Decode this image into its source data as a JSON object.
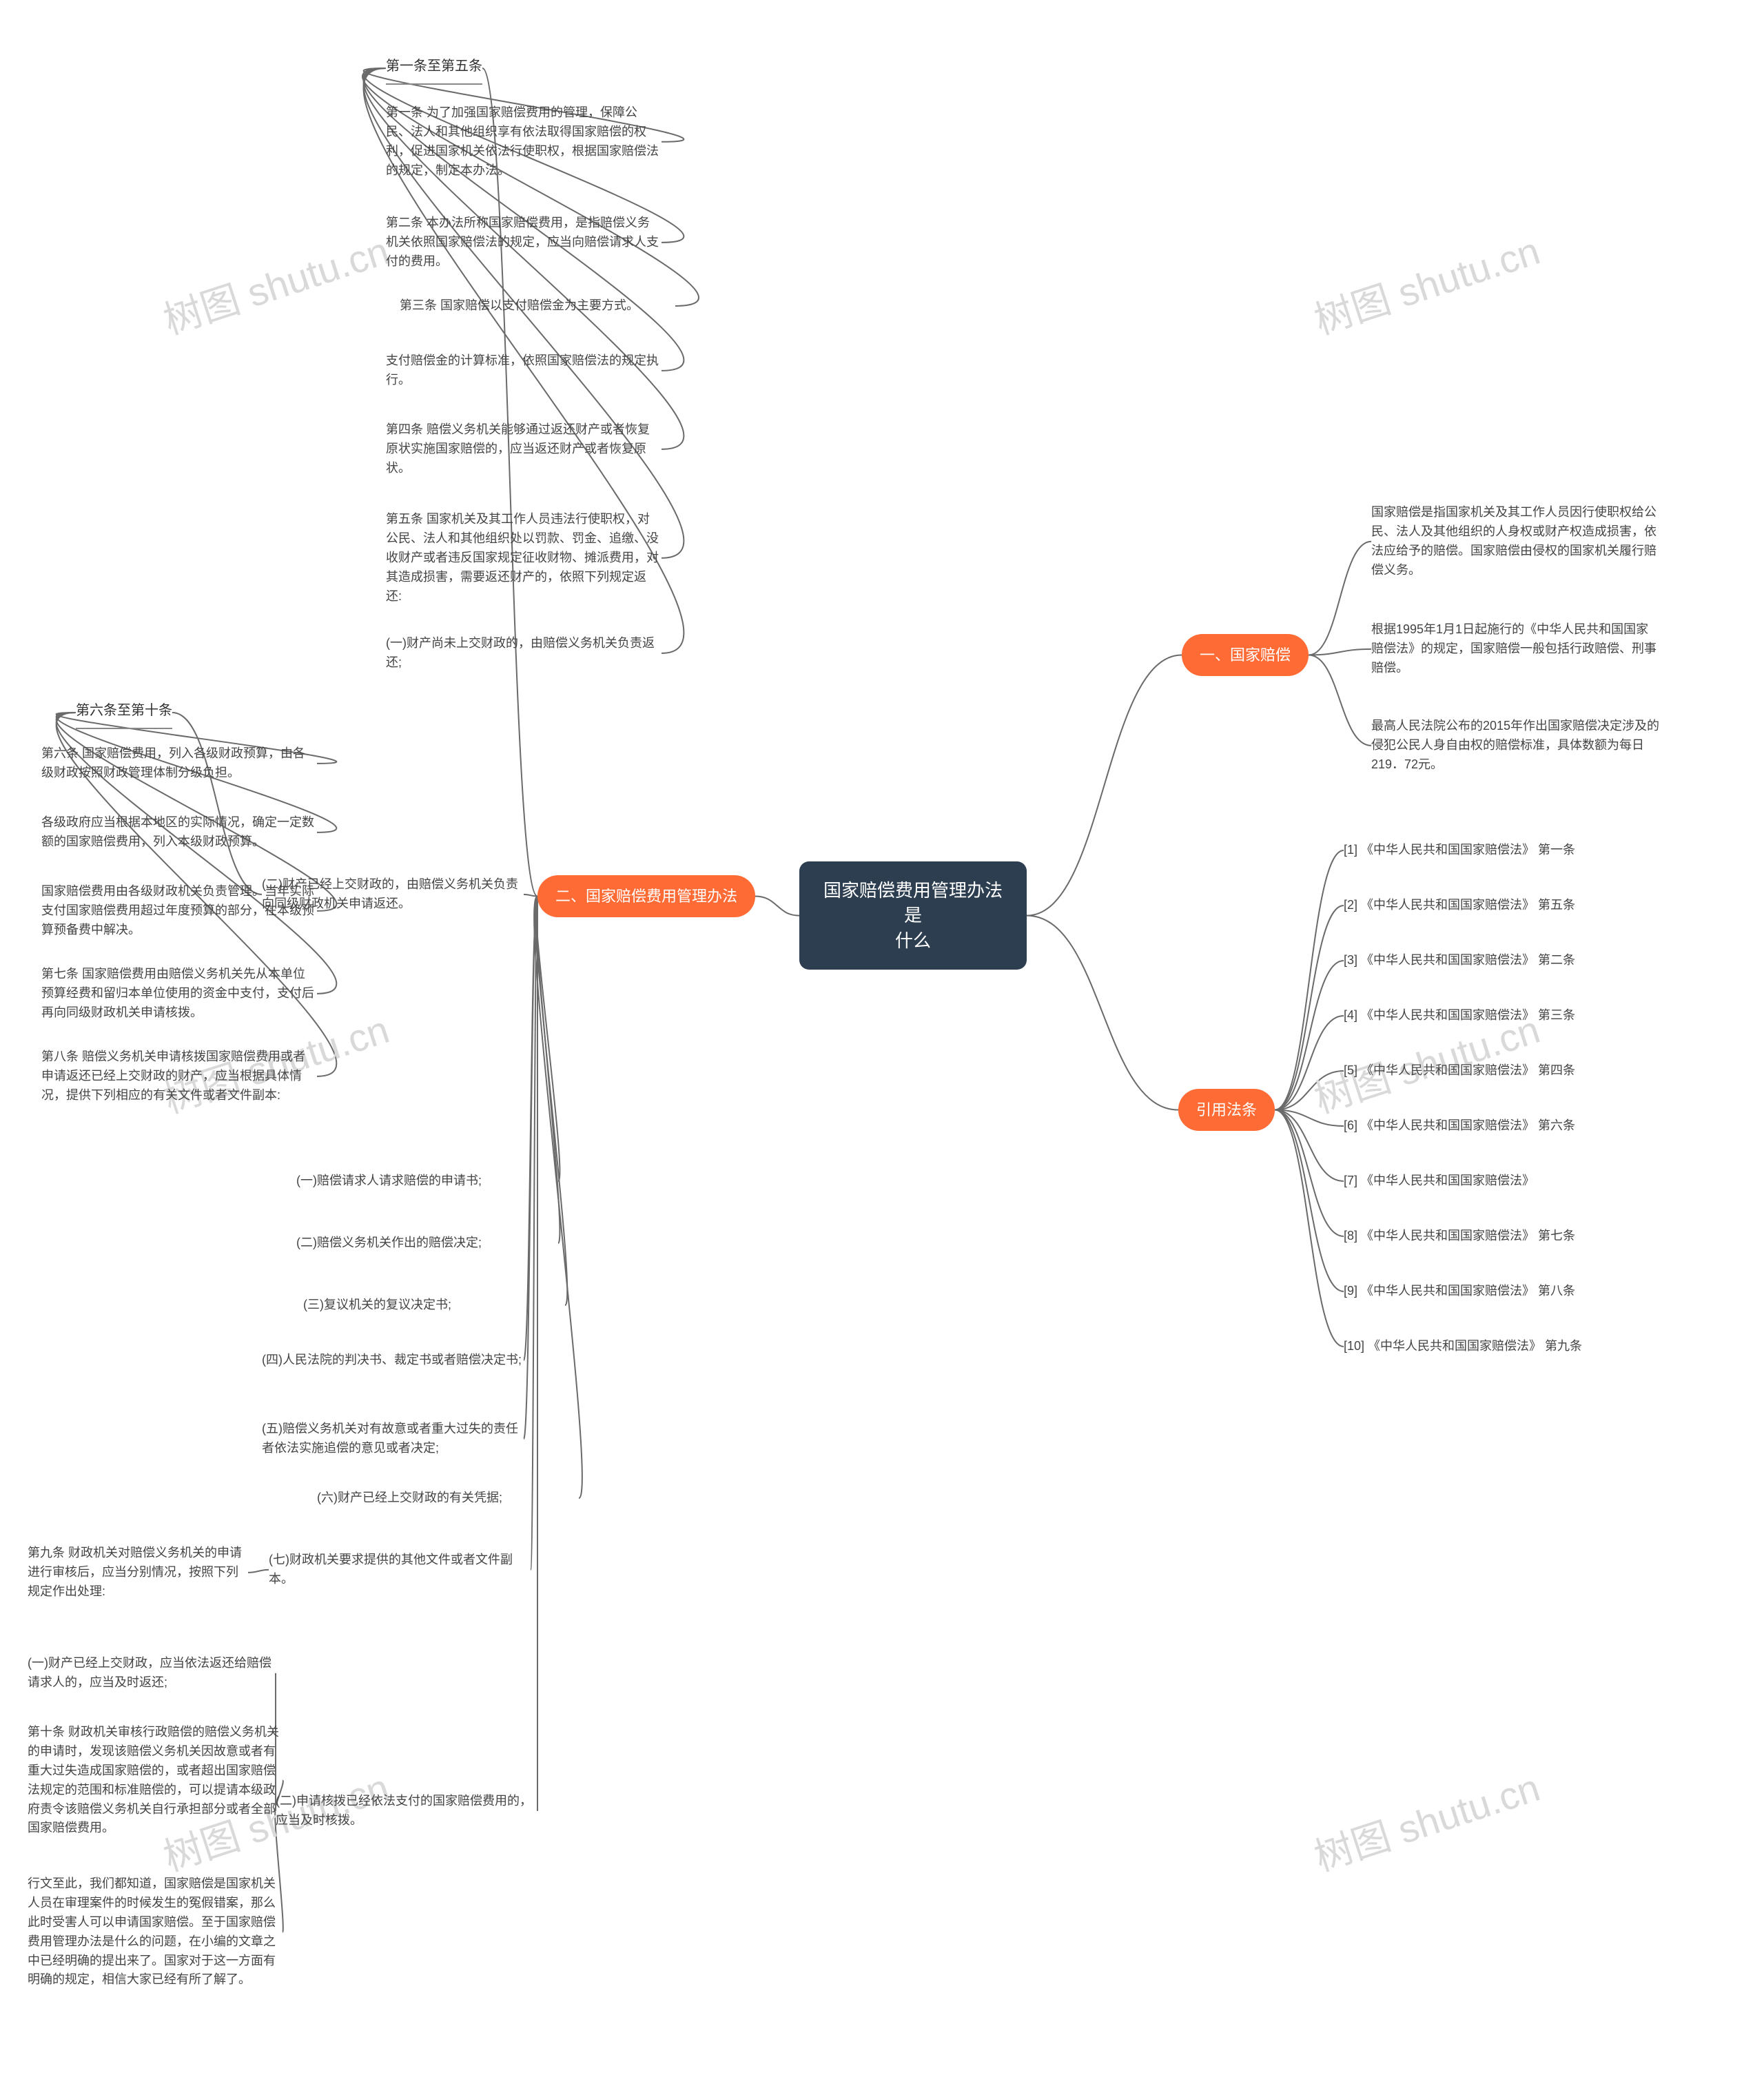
{
  "colors": {
    "root_bg": "#2c3e4f",
    "branch_bg": "#ff6b35",
    "line": "#6a6a6a",
    "text": "#333333",
    "watermark": "#d9d9d9",
    "bg": "#ffffff"
  },
  "root": {
    "line1": "国家赔偿费用管理办法是",
    "line2": "什么"
  },
  "branch1": {
    "label": "一、国家赔偿"
  },
  "branch1_items": [
    "国家赔偿是指国家机关及其工作人员因行使职权给公民、法人及其他组织的人身权或财产权造成损害，依法应给予的赔偿。国家赔偿由侵权的国家机关履行赔偿义务。",
    "根据1995年1月1日起施行的《中华人民共和国国家赔偿法》的规定，国家赔偿一般包括行政赔偿、刑事赔偿。",
    "最高人民法院公布的2015年作出国家赔偿决定涉及的侵犯公民人身自由权的赔偿标准，具体数额为每日219．72元。"
  ],
  "branch2": {
    "label": "引用法条"
  },
  "branch2_items": [
    "[1] 《中华人民共和国国家赔偿法》 第一条",
    "[2] 《中华人民共和国国家赔偿法》 第五条",
    "[3] 《中华人民共和国国家赔偿法》 第二条",
    "[4] 《中华人民共和国国家赔偿法》 第三条",
    "[5] 《中华人民共和国国家赔偿法》 第四条",
    "[6] 《中华人民共和国国家赔偿法》 第六条",
    "[7] 《中华人民共和国国家赔偿法》",
    "[8] 《中华人民共和国国家赔偿法》 第七条",
    "[9] 《中华人民共和国国家赔偿法》 第八条",
    "[10] 《中华人民共和国国家赔偿法》 第九条"
  ],
  "branch3": {
    "label": "二、国家赔偿费用管理办法"
  },
  "sec1_header": "第一条至第五条",
  "sec1_items": [
    "第一条 为了加强国家赔偿费用的管理，保障公民、法人和其他组织享有依法取得国家赔偿的权利，促进国家机关依法行使职权，根据国家赔偿法的规定，制定本办法。",
    "第二条 本办法所称国家赔偿费用，是指赔偿义务机关依照国家赔偿法的规定，应当向赔偿请求人支付的费用。",
    "第三条 国家赔偿以支付赔偿金为主要方式。",
    "支付赔偿金的计算标准，依照国家赔偿法的规定执行。",
    "第四条 赔偿义务机关能够通过返还财产或者恢复原状实施国家赔偿的，应当返还财产或者恢复原状。",
    "第五条 国家机关及其工作人员违法行使职权，对公民、法人和其他组织处以罚款、罚金、追缴、没收财产或者违反国家规定征收财物、摊派费用，对其造成损害，需要返还财产的，依照下列规定返还:",
    "(一)财产尚未上交财政的，由赔偿义务机关负责返还;"
  ],
  "sec2_header": "第六条至第十条",
  "sec2_conn": "(二)财产已经上交财政的，由赔偿义务机关负责向同级财政机关申请返还。",
  "sec2_items": [
    "第六条 国家赔偿费用，列入各级财政预算，由各级财政按照财政管理体制分级负担。",
    "各级政府应当根据本地区的实际情况，确定一定数额的国家赔偿费用，列入本级财政预算。",
    "国家赔偿费用由各级财政机关负责管理。当年实际支付国家赔偿费用超过年度预算的部分，在本级预算预备费中解决。",
    "第七条 国家赔偿费用由赔偿义务机关先从本单位预算经费和留归本单位使用的资金中支付，支付后再向同级财政机关申请核拨。",
    "第八条 赔偿义务机关申请核拨国家赔偿费用或者申请返还已经上交财政的财产，应当根据具体情况，提供下列相应的有关文件或者文件副本:"
  ],
  "sec2b_items": [
    "(一)赔偿请求人请求赔偿的申请书;",
    "(二)赔偿义务机关作出的赔偿决定;",
    "(三)复议机关的复议决定书;",
    "(四)人民法院的判决书、裁定书或者赔偿决定书;",
    "(五)赔偿义务机关对有故意或者重大过失的责任者依法实施追偿的意见或者决定;",
    "(六)财产已经上交财政的有关凭据;"
  ],
  "sec2c_conn": "(七)财政机关要求提供的其他文件或者文件副本。",
  "sec2c_items": [
    "第九条 财政机关对赔偿义务机关的申请进行审核后，应当分别情况，按照下列规定作出处理:"
  ],
  "sec2d_conn": "(二)申请核拨已经依法支付的国家赔偿费用的，应当及时核拨。",
  "sec2d_items": [
    "(一)财产已经上交财政，应当依法返还给赔偿请求人的，应当及时返还;",
    "第十条 财政机关审核行政赔偿的赔偿义务机关的申请时，发现该赔偿义务机关因故意或者有重大过失造成国家赔偿的，或者超出国家赔偿法规定的范围和标准赔偿的，可以提请本级政府责令该赔偿义务机关自行承担部分或者全部国家赔偿费用。",
    "行文至此，我们都知道，国家赔偿是国家机关人员在审理案件的时候发生的冤假错案，那么此时受害人可以申请国家赔偿。至于国家赔偿费用管理办法是什么的问题，在小编的文章之中已经明确的提出来了。国家对于这一方面有明确的规定，相信大家已经有所了解了。"
  ],
  "watermark": "树图 shutu.cn"
}
